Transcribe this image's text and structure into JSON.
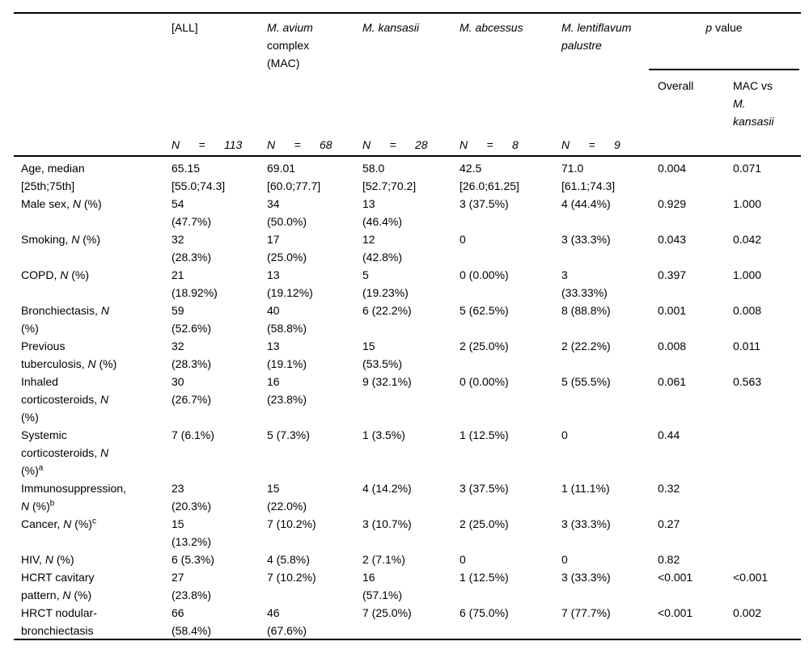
{
  "page": {
    "background_color": "#ffffff",
    "text_color": "#000000"
  },
  "table": {
    "header": {
      "species_columns": [
        "",
        "[ALL]",
        "*M. avium*\ncomplex\n(MAC)",
        "*M. kansasii*",
        "*M. abcessus*",
        "*M. lentiflavum*\n*palustre*"
      ],
      "p_value": {
        "label": "*p* value",
        "sub_columns": [
          "Overall",
          "MAC vs\n*M.*\n*kansasii*"
        ]
      },
      "n_row": [
        "",
        "*N      =      113*",
        "*N      =      68*",
        "*N      =      28*",
        "*N      =      8*",
        "*N      =      9*",
        "",
        ""
      ]
    },
    "rows": [
      {
        "cells": [
          "Age, median\n[25th;75th]",
          "65.15\n[55.0;74.3]",
          "69.01\n[60.0;77.7]",
          "58.0\n[52.7;70.2]",
          "42.5\n[26.0;61.25]",
          "71.0\n[61.1;74.3]",
          "0.004",
          "0.071"
        ]
      },
      {
        "cells": [
          "Male sex, *N* (%)",
          "54\n(47.7%)",
          "34\n(50.0%)",
          "13\n(46.4%)",
          "3 (37.5%)",
          "4 (44.4%)",
          "0.929",
          "1.000"
        ]
      },
      {
        "cells": [
          "Smoking, *N* (%)",
          "32\n(28.3%)",
          "17\n(25.0%)",
          "12\n(42.8%)",
          "0",
          "3 (33.3%)",
          "0.043",
          "0.042"
        ]
      },
      {
        "cells": [
          "COPD, *N* (%)",
          "21\n(18.92%)",
          "13\n(19.12%)",
          "5\n(19.23%)",
          "0 (0.00%)",
          "3\n(33.33%)",
          "0.397",
          "1.000"
        ]
      },
      {
        "cells": [
          "Bronchiectasis, *N*\n(%)",
          "59\n(52.6%)",
          "40\n(58.8%)",
          "6 (22.2%)",
          "5 (62.5%)",
          "8 (88.8%)",
          "0.001",
          "0.008"
        ]
      },
      {
        "cells": [
          "Previous\ntuberculosis, *N* (%)",
          "32\n(28.3%)",
          "13\n(19.1%)",
          "15\n(53.5%)",
          "2 (25.0%)",
          "2 (22.2%)",
          "0.008",
          "0.011"
        ]
      },
      {
        "cells": [
          "Inhaled\ncorticosteroids, *N*\n(%)",
          "30\n(26.7%)",
          "16\n(23.8%)",
          "9 (32.1%)",
          "0 (0.00%)",
          "5 (55.5%)",
          "0.061",
          "0.563"
        ]
      },
      {
        "cells": [
          "Systemic\ncorticosteroids, *N*\n(%)^a^",
          "7 (6.1%)",
          "5 (7.3%)",
          "1 (3.5%)",
          "1 (12.5%)",
          "0",
          "0.44",
          ""
        ]
      },
      {
        "cells": [
          "Immunosuppression,\n*N* (%)^b^",
          "23\n(20.3%)",
          "15\n(22.0%)",
          "4 (14.2%)",
          "3 (37.5%)",
          "1 (11.1%)",
          "0.32",
          ""
        ]
      },
      {
        "cells": [
          "Cancer, *N* (%)^c^",
          "15\n(13.2%)",
          "7 (10.2%)",
          "3 (10.7%)",
          "2 (25.0%)",
          "3 (33.3%)",
          "0.27",
          ""
        ]
      },
      {
        "cells": [
          "HIV, *N* (%)",
          "6 (5.3%)",
          "4 (5.8%)",
          "2 (7.1%)",
          "0",
          "0",
          "0.82",
          ""
        ]
      },
      {
        "cells": [
          "HCRT cavitary\npattern, *N* (%)",
          "27\n(23.8%)",
          "7 (10.2%)",
          "16\n(57.1%)",
          "1 (12.5%)",
          "3 (33.3%)",
          "<0.001",
          "<0.001"
        ]
      },
      {
        "cells": [
          "HRCT nodular-\nbronchiectasis",
          "66\n(58.4%)",
          "46\n(67.6%)",
          "7 (25.0%)",
          "6 (75.0%)",
          "7 (77.7%)",
          "<0.001",
          "0.002"
        ]
      }
    ]
  }
}
